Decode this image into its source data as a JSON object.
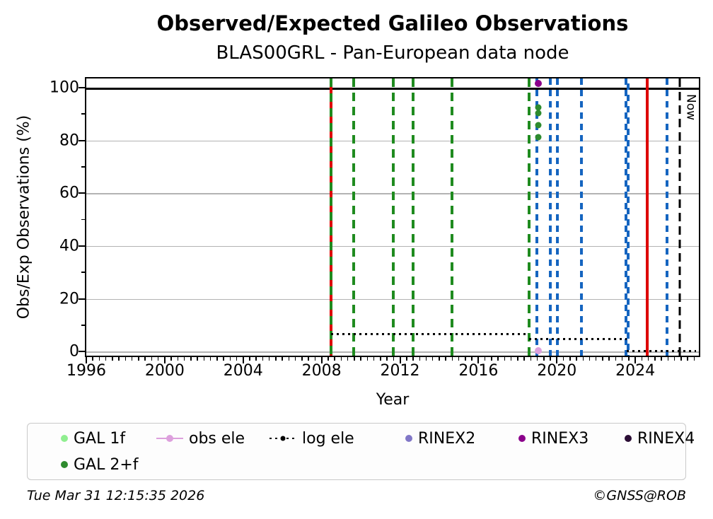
{
  "title": "Observed/Expected Galileo Observations",
  "subtitle": "BLAS00GRL - Pan-European data node",
  "footer": {
    "timestamp": "Tue Mar 31 12:15:35 2026",
    "copyright": "©GNSS@ROB"
  },
  "colors": {
    "gal1f": "#90ee90",
    "gal2f": "#2e8b2e",
    "obs_ele": "#dda0dd",
    "log_ele": "#000000",
    "rinex2": "#8177c7",
    "rinex3": "#8b008b",
    "rinex4": "#2b0e35",
    "event_green": "#1f8b1f",
    "event_blue": "#1565c0",
    "event_red": "#dd0000",
    "grid_gray": "#b3b3b3"
  },
  "chart_data": {
    "type": "scatter",
    "title": "Observed/Expected Galileo Observations",
    "subtitle": "BLAS00GRL - Pan-European data node",
    "xlabel": "Year",
    "ylabel": "Obs/Exp Observations (%)",
    "xlim": [
      1996,
      2027.24
    ],
    "ylim": [
      -1.55,
      103.46
    ],
    "xticks": [
      1996,
      2000,
      2004,
      2008,
      2012,
      2016,
      2020,
      2024
    ],
    "yticks": [
      0,
      20,
      40,
      60,
      80,
      100
    ],
    "grid": true,
    "now_marker": {
      "x": 2026.25,
      "label": "Now",
      "style": "black-dashed"
    },
    "event_lines": [
      {
        "x": 2008.49,
        "style": "green-red-dashed"
      },
      {
        "x": 2009.63,
        "style": "green-dashed"
      },
      {
        "x": 2011.65,
        "style": "green-dashed"
      },
      {
        "x": 2012.66,
        "style": "green-dashed"
      },
      {
        "x": 2014.65,
        "style": "green-dashed"
      },
      {
        "x": 2018.6,
        "style": "green-dashed"
      },
      {
        "x": 2018.97,
        "style": "blue-dashed"
      },
      {
        "x": 2019.67,
        "style": "blue-dashed"
      },
      {
        "x": 2020.01,
        "style": "blue-dashed"
      },
      {
        "x": 2021.24,
        "style": "blue-dashed"
      },
      {
        "x": 2023.52,
        "style": "blue-dashed"
      },
      {
        "x": 2023.62,
        "style": "blue-dashed-offset"
      },
      {
        "x": 2024.6,
        "style": "red-solid"
      },
      {
        "x": 2025.62,
        "style": "blue-dashed"
      }
    ],
    "log_ele_segments": [
      {
        "x1": 2008.49,
        "x2": 2018.6,
        "value": 6.7
      },
      {
        "x1": 2018.6,
        "x2": 2023.55,
        "value": 4.7
      },
      {
        "x1": 2023.55,
        "x2": 2027.1,
        "value": 0.2
      }
    ],
    "series": [
      {
        "name": "GAL 1f",
        "color_key": "gal1f",
        "marker": "dot",
        "points": []
      },
      {
        "name": "GAL 2+f",
        "color_key": "gal2f",
        "marker": "dot",
        "points": [
          [
            2019.04,
            92.4
          ],
          [
            2019.04,
            90.4
          ],
          [
            2019.04,
            85.9
          ],
          [
            2019.04,
            81.3
          ]
        ]
      },
      {
        "name": "obs ele",
        "color_key": "obs_ele",
        "marker": "line-dot",
        "points": [
          [
            2019.05,
            0.3
          ]
        ]
      },
      {
        "name": "log ele",
        "color_key": "log_ele",
        "marker": "dotted-dot",
        "points": []
      },
      {
        "name": "RINEX2",
        "color_key": "rinex2",
        "marker": "dot",
        "points": []
      },
      {
        "name": "RINEX3",
        "color_key": "rinex3",
        "marker": "dot",
        "points": [
          [
            2019.05,
            101.7
          ]
        ]
      },
      {
        "name": "RINEX4",
        "color_key": "rinex4",
        "marker": "dot",
        "points": []
      }
    ],
    "legend_order_row1": [
      "GAL 1f",
      "obs ele",
      "log ele",
      "RINEX2",
      "RINEX3",
      "RINEX4"
    ],
    "legend_order_row2": [
      "GAL 2+f"
    ],
    "legend_position": "bottom"
  }
}
